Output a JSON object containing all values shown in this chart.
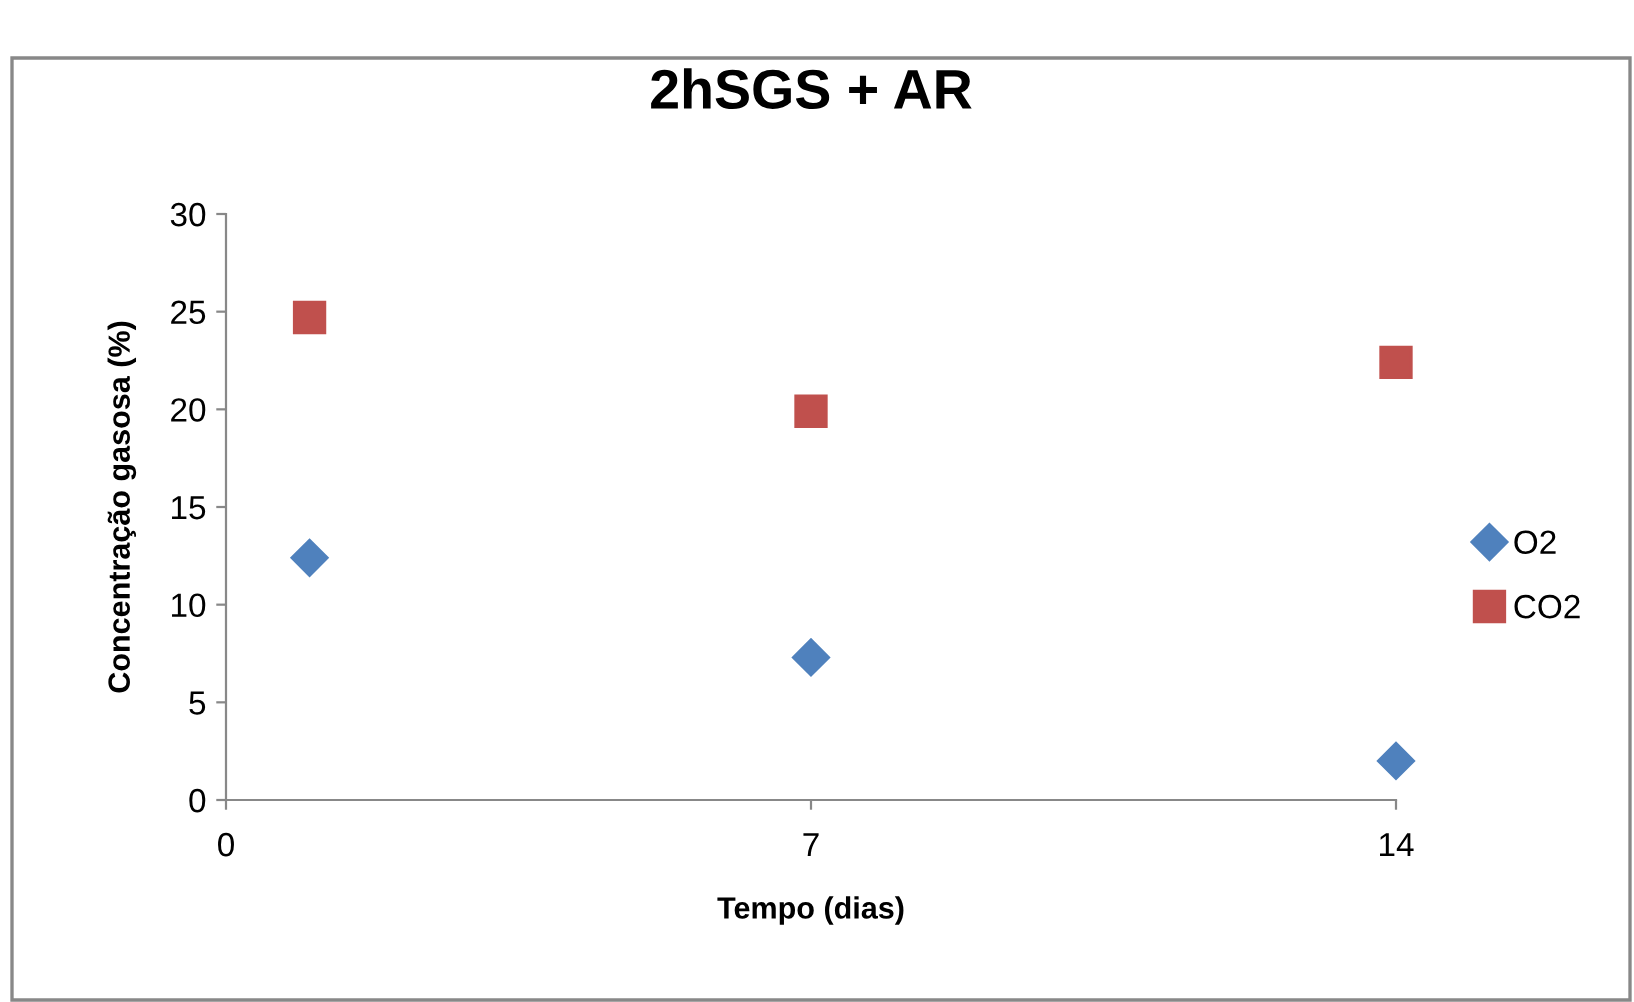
{
  "chart_data": {
    "type": "scatter",
    "title": "2hSGS + AR",
    "xlabel": "Tempo (dias)",
    "ylabel": "Concentração gasosa (%)",
    "x": [
      1,
      7,
      14
    ],
    "series": [
      {
        "name": "O2",
        "color": "#4f81bd",
        "marker": "diamond",
        "values": [
          12.4,
          7.3,
          2.0
        ]
      },
      {
        "name": "CO2",
        "color": "#c0504d",
        "marker": "square",
        "values": [
          24.7,
          19.9,
          22.4
        ]
      }
    ],
    "xlim": [
      0,
      14
    ],
    "xticks": [
      0,
      7,
      14
    ],
    "ylim": [
      0,
      30
    ],
    "yticks": [
      0,
      5,
      10,
      15,
      20,
      25,
      30
    ],
    "grid": false,
    "legend": "right"
  }
}
